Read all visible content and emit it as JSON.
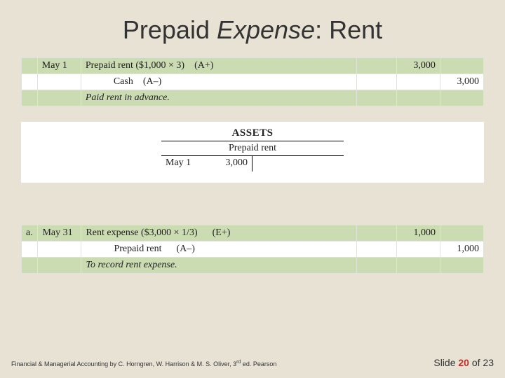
{
  "title": {
    "pre": "Prepaid ",
    "italic": "Expense",
    "post": ": Rent"
  },
  "journal1": {
    "row1": {
      "date": "May 1",
      "account": "Prepaid rent ($1,000 × 3)",
      "tag": "(A+)",
      "debit": "3,000",
      "credit": ""
    },
    "row2": {
      "account": "Cash",
      "tag": "(A–)",
      "debit": "",
      "credit": "3,000"
    },
    "row3": {
      "desc": "Paid rent in advance."
    }
  },
  "taccount": {
    "heading": "ASSETS",
    "name": "Prepaid rent",
    "left_date": "May 1",
    "left_amount": "3,000"
  },
  "journal2": {
    "row1": {
      "ref": "a.",
      "date": "May 31",
      "account": "Rent expense ($3,000 × 1/3)",
      "tag": "(E+)",
      "debit": "1,000",
      "credit": ""
    },
    "row2": {
      "account": "Prepaid rent",
      "tag": "(A–)",
      "debit": "",
      "credit": "1,000"
    },
    "row3": {
      "desc": "To record rent expense."
    }
  },
  "footer": {
    "citation_pre": "Financial & Managerial Accounting by C. Horngren, W. Harrison & M. S. Oliver, 3",
    "citation_sup": "rd",
    "citation_post": " ed. Pearson",
    "slide_label": "Slide ",
    "slide_num": "20",
    "slide_of": " of 23"
  },
  "colors": {
    "background": "#e8e2d4",
    "row_green": "#cbdbb2",
    "accent_red": "#c03028"
  }
}
